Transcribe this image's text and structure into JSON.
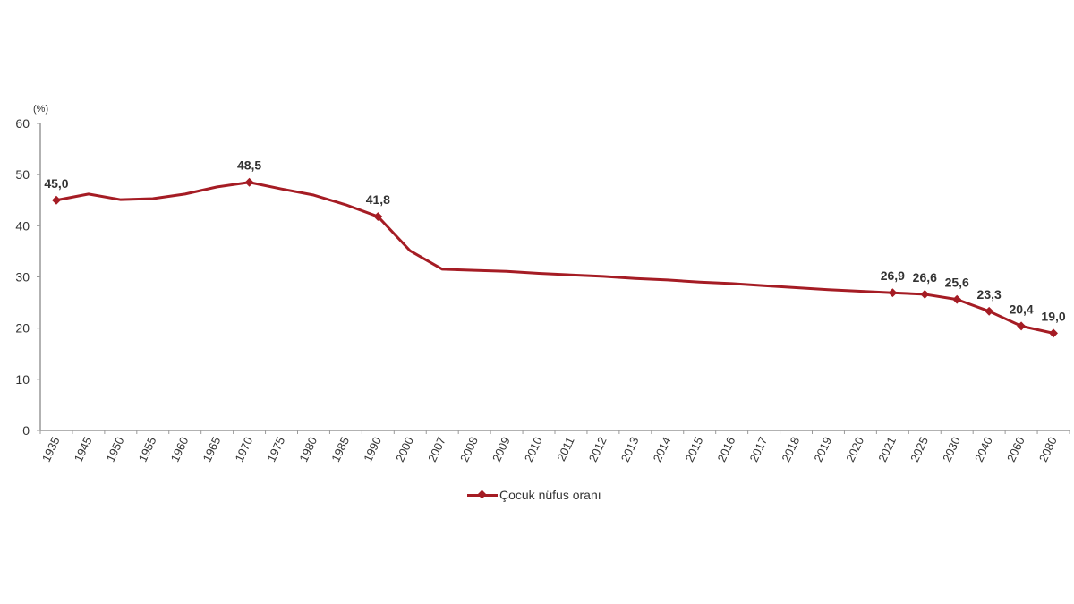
{
  "chart_data": {
    "type": "line",
    "title": "",
    "xlabel": "",
    "ylabel": "(%)",
    "ylim": [
      0,
      60
    ],
    "yticks": [
      0,
      10,
      20,
      30,
      40,
      50,
      60
    ],
    "grid": false,
    "legend_position": "bottom",
    "categories": [
      "1935",
      "1945",
      "1950",
      "1955",
      "1960",
      "1965",
      "1970",
      "1975",
      "1980",
      "1985",
      "1990",
      "2000",
      "2007",
      "2008",
      "2009",
      "2010",
      "2011",
      "2012",
      "2013",
      "2014",
      "2015",
      "2016",
      "2017",
      "2018",
      "2019",
      "2020",
      "2021",
      "2025",
      "2030",
      "2040",
      "2060",
      "2080"
    ],
    "series": [
      {
        "name": "Çocuk nüfus oranı",
        "color": "#a51c24",
        "values": [
          45.0,
          46.2,
          45.1,
          45.3,
          46.2,
          47.6,
          48.5,
          47.2,
          46.0,
          44.1,
          41.8,
          35.1,
          31.5,
          31.3,
          31.1,
          30.7,
          30.4,
          30.1,
          29.7,
          29.4,
          29.0,
          28.7,
          28.3,
          27.9,
          27.5,
          27.2,
          26.9,
          26.6,
          25.6,
          23.3,
          20.4,
          19.0
        ]
      }
    ],
    "annotations": [
      {
        "category": "1935",
        "label": "45,0"
      },
      {
        "category": "1970",
        "label": "48,5"
      },
      {
        "category": "1990",
        "label": "41,8"
      },
      {
        "category": "2021",
        "label": "26,9"
      },
      {
        "category": "2025",
        "label": "26,6"
      },
      {
        "category": "2030",
        "label": "25,6"
      },
      {
        "category": "2040",
        "label": "23,3"
      },
      {
        "category": "2060",
        "label": "20,4"
      },
      {
        "category": "2080",
        "label": "19,0"
      }
    ]
  },
  "legend": {
    "label": "Çocuk nüfus oranı"
  },
  "axis": {
    "y_unit": "(%)"
  }
}
